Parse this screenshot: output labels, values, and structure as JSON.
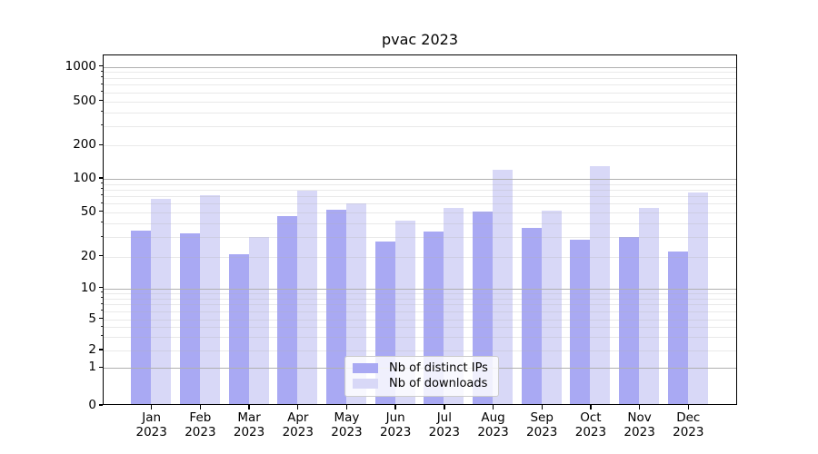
{
  "chart_data": {
    "type": "bar",
    "title": "pvac 2023",
    "categories": [
      "Jan",
      "Feb",
      "Mar",
      "Apr",
      "May",
      "Jun",
      "Jul",
      "Aug",
      "Sep",
      "Oct",
      "Nov",
      "Dec"
    ],
    "x_tick_second_line": "2023",
    "series": [
      {
        "name": "Nb of distinct IPs",
        "color": "#a9a9f3",
        "values": [
          34,
          32,
          21,
          46,
          52,
          27,
          33,
          50,
          36,
          28,
          30,
          22
        ]
      },
      {
        "name": "Nb of downloads",
        "color": "#d8d8f7",
        "values": [
          66,
          71,
          30,
          78,
          60,
          42,
          54,
          119,
          51,
          130,
          54,
          75
        ]
      }
    ],
    "yticks": [
      0,
      1,
      2,
      5,
      10,
      20,
      50,
      100,
      200,
      500,
      1000
    ],
    "yscale": "asinh-log (compressed below 10, log above)",
    "ylim": [
      0,
      1250
    ],
    "xlabel": "",
    "ylabel": "",
    "grid": {
      "on": true,
      "major_at": [
        1,
        10,
        100,
        1000
      ],
      "major_color": "#b0b0b0",
      "minor_color": "#e8e8e8",
      "grid_above_bars": true
    },
    "legend": {
      "position": "lower-center",
      "entries": [
        "Nb of distinct IPs",
        "Nb of downloads"
      ]
    }
  }
}
